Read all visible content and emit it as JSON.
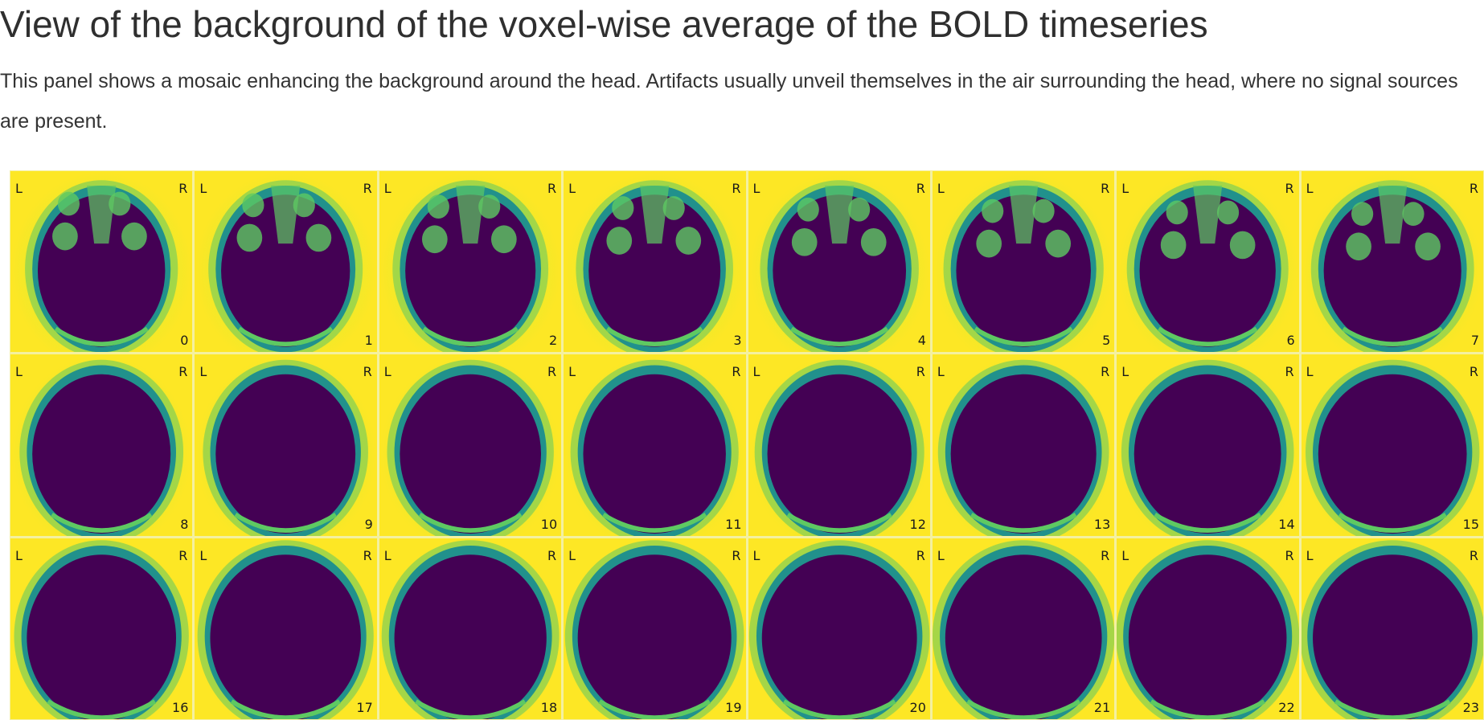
{
  "header": {
    "title": "View of the background of the voxel-wise average of the BOLD timeseries",
    "description": "This panel shows a mosaic enhancing the background around the head. Artifacts usually unveil themselves in the air surrounding the head, where no signal sources are present."
  },
  "mosaic": {
    "left_label": "L",
    "right_label": "R",
    "colors": {
      "background": "#fde725",
      "edge": "#5ec962",
      "mid": "#21918c",
      "interior": "#440154"
    },
    "slices": [
      {
        "index": "0"
      },
      {
        "index": "1"
      },
      {
        "index": "2"
      },
      {
        "index": "3"
      },
      {
        "index": "4"
      },
      {
        "index": "5"
      },
      {
        "index": "6"
      },
      {
        "index": "7"
      },
      {
        "index": "8"
      },
      {
        "index": "9"
      },
      {
        "index": "10"
      },
      {
        "index": "11"
      },
      {
        "index": "12"
      },
      {
        "index": "13"
      },
      {
        "index": "14"
      },
      {
        "index": "15"
      },
      {
        "index": "16"
      },
      {
        "index": "17"
      },
      {
        "index": "18"
      },
      {
        "index": "19"
      },
      {
        "index": "20"
      },
      {
        "index": "21"
      },
      {
        "index": "22"
      },
      {
        "index": "23"
      }
    ]
  }
}
